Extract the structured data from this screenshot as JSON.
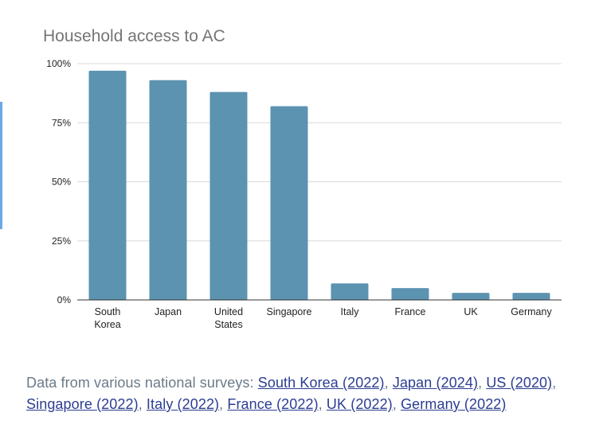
{
  "chart_data": {
    "type": "bar",
    "title": "Household access to AC",
    "categories": [
      [
        "South",
        "Korea"
      ],
      [
        "Japan"
      ],
      [
        "United",
        "States"
      ],
      [
        "Singapore"
      ],
      [
        "Italy"
      ],
      [
        "France"
      ],
      [
        "UK"
      ],
      [
        "Germany"
      ]
    ],
    "values": [
      97,
      93,
      88,
      82,
      7,
      5,
      3,
      3
    ],
    "yticks": [
      "0%",
      "25%",
      "50%",
      "75%",
      "100%"
    ],
    "ylim": [
      0,
      100
    ],
    "grid": true,
    "bar_color": "#5b93b0"
  },
  "caption": {
    "prefix": "Data from various national surveys: ",
    "links": [
      "South Korea (2022)",
      "Japan (2024)",
      "US (2020)",
      "Singapore (2022)",
      "Italy (2022)",
      "France (2022)",
      "UK (2022)",
      "Germany (2022)"
    ],
    "separator": ", "
  }
}
